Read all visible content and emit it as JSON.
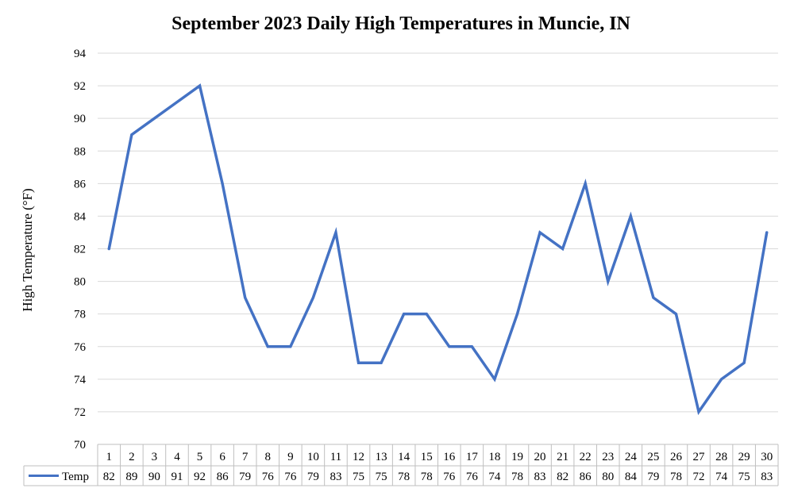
{
  "chart_data": {
    "type": "line",
    "title": "September 2023 Daily High Temperatures in Muncie, IN",
    "xlabel": "",
    "ylabel": "High Temperature (°F)",
    "ylim": [
      70,
      94
    ],
    "y_ticks": [
      70,
      72,
      74,
      76,
      78,
      80,
      82,
      84,
      86,
      88,
      90,
      92,
      94
    ],
    "grid": true,
    "legend": "data table (left of table row)",
    "categories": [
      "1",
      "2",
      "3",
      "4",
      "5",
      "6",
      "7",
      "8",
      "9",
      "10",
      "11",
      "12",
      "13",
      "14",
      "15",
      "16",
      "17",
      "18",
      "19",
      "20",
      "21",
      "22",
      "23",
      "24",
      "25",
      "26",
      "27",
      "28",
      "29",
      "30"
    ],
    "series": [
      {
        "name": "Temp",
        "color": "#4472C4",
        "values": [
          82,
          89,
          90,
          91,
          92,
          86,
          79,
          76,
          76,
          79,
          83,
          75,
          75,
          78,
          78,
          76,
          76,
          74,
          78,
          83,
          82,
          86,
          80,
          84,
          79,
          78,
          72,
          74,
          75,
          83
        ]
      }
    ]
  }
}
